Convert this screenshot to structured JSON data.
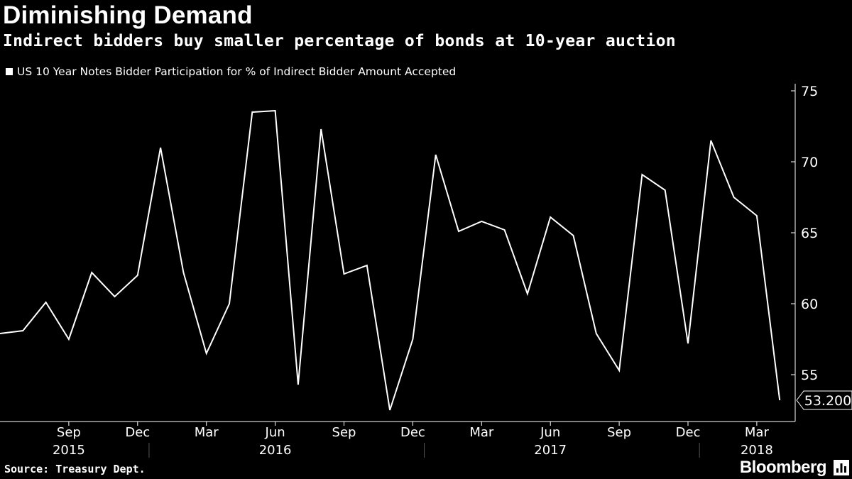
{
  "header": {
    "title": "Diminishing Demand",
    "subtitle": "Indirect bidders buy smaller percentage of bonds at 10-year auction",
    "legend_label": "US 10 Year Notes Bidder Participation for % of Indirect Bidder Amount Accepted"
  },
  "footer": {
    "source": "Source: Treasury Dept.",
    "brand": "Bloomberg"
  },
  "colors": {
    "background": "#000000",
    "line": "#ffffff"
  },
  "chart_data": {
    "type": "line",
    "title": "Diminishing Demand",
    "subtitle": "Indirect bidders buy smaller percentage of bonds at 10-year auction",
    "series": [
      {
        "name": "US 10 Year Notes Bidder Participation for % of Indirect Bidder Amount Accepted",
        "x": [
          "2015-06",
          "2015-07",
          "2015-08",
          "2015-09",
          "2015-10",
          "2015-11",
          "2015-12",
          "2016-01",
          "2016-02",
          "2016-03",
          "2016-04",
          "2016-05",
          "2016-06",
          "2016-07",
          "2016-08",
          "2016-09",
          "2016-10",
          "2016-11",
          "2016-12",
          "2017-01",
          "2017-02",
          "2017-03",
          "2017-04",
          "2017-05",
          "2017-06",
          "2017-07",
          "2017-08",
          "2017-09",
          "2017-10",
          "2017-11",
          "2017-12",
          "2018-01",
          "2018-02",
          "2018-03",
          "2018-04"
        ],
        "values": [
          57.9,
          58.1,
          60.1,
          57.5,
          62.2,
          60.5,
          62.0,
          71.0,
          62.2,
          56.5,
          60.0,
          73.5,
          73.6,
          54.3,
          72.3,
          62.1,
          62.7,
          52.5,
          57.5,
          70.5,
          65.1,
          65.8,
          65.2,
          60.7,
          66.1,
          64.8,
          57.9,
          55.3,
          69.1,
          68.0,
          57.2,
          71.5,
          67.5,
          66.2,
          53.2
        ]
      }
    ],
    "last_value_label": "53.200",
    "y_ticks": [
      55,
      60,
      65,
      70,
      75
    ],
    "ylim": [
      51.7,
      75.5
    ],
    "x_month_ticks": [
      {
        "date": "2015-09",
        "label": "Sep"
      },
      {
        "date": "2015-12",
        "label": "Dec"
      },
      {
        "date": "2016-03",
        "label": "Mar"
      },
      {
        "date": "2016-06",
        "label": "Jun"
      },
      {
        "date": "2016-09",
        "label": "Sep"
      },
      {
        "date": "2016-12",
        "label": "Dec"
      },
      {
        "date": "2017-03",
        "label": "Mar"
      },
      {
        "date": "2017-06",
        "label": "Jun"
      },
      {
        "date": "2017-09",
        "label": "Sep"
      },
      {
        "date": "2017-12",
        "label": "Dec"
      },
      {
        "date": "2018-03",
        "label": "Mar"
      }
    ],
    "x_year_labels": [
      {
        "date": "2015-09",
        "label": "2015"
      },
      {
        "date": "2016-06",
        "label": "2016"
      },
      {
        "date": "2017-06",
        "label": "2017"
      },
      {
        "date": "2018-03",
        "label": "2018"
      }
    ],
    "x_year_separators": [
      "2016-01",
      "2017-01",
      "2018-01"
    ],
    "xlabel": "",
    "ylabel": "",
    "grid": false,
    "y_axis_side": "right"
  }
}
